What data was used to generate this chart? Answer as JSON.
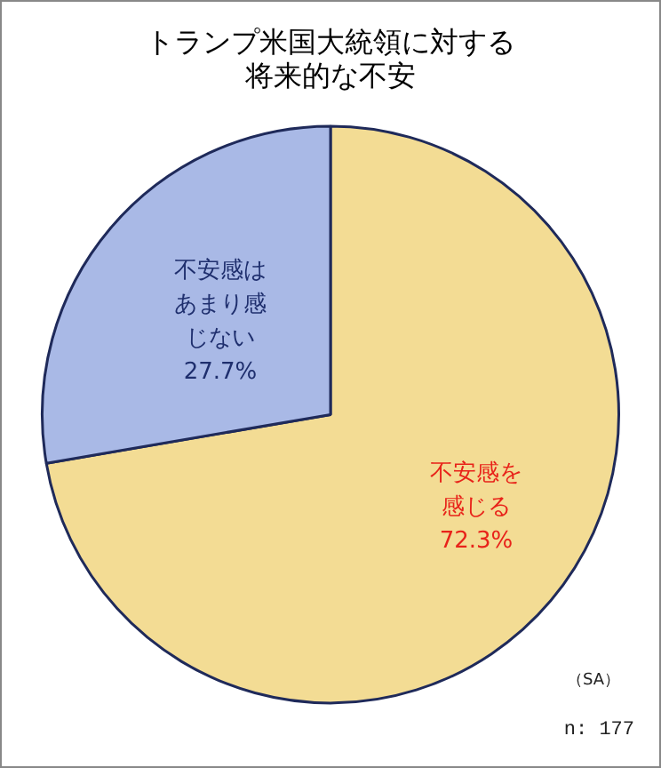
{
  "chart_data": {
    "type": "pie",
    "title": "トランプ米国大統領に対する将来的な不安",
    "categories": [
      "不安感を感じる",
      "不安感はあまり感じない"
    ],
    "values": [
      72.3,
      27.7
    ],
    "colors": [
      "#f3dc94",
      "#a9b9e6"
    ],
    "value_labels": [
      "72.3%",
      "27.7%"
    ],
    "legend": false,
    "annotations": [
      "（SA）",
      "n: 177"
    ]
  }
}
